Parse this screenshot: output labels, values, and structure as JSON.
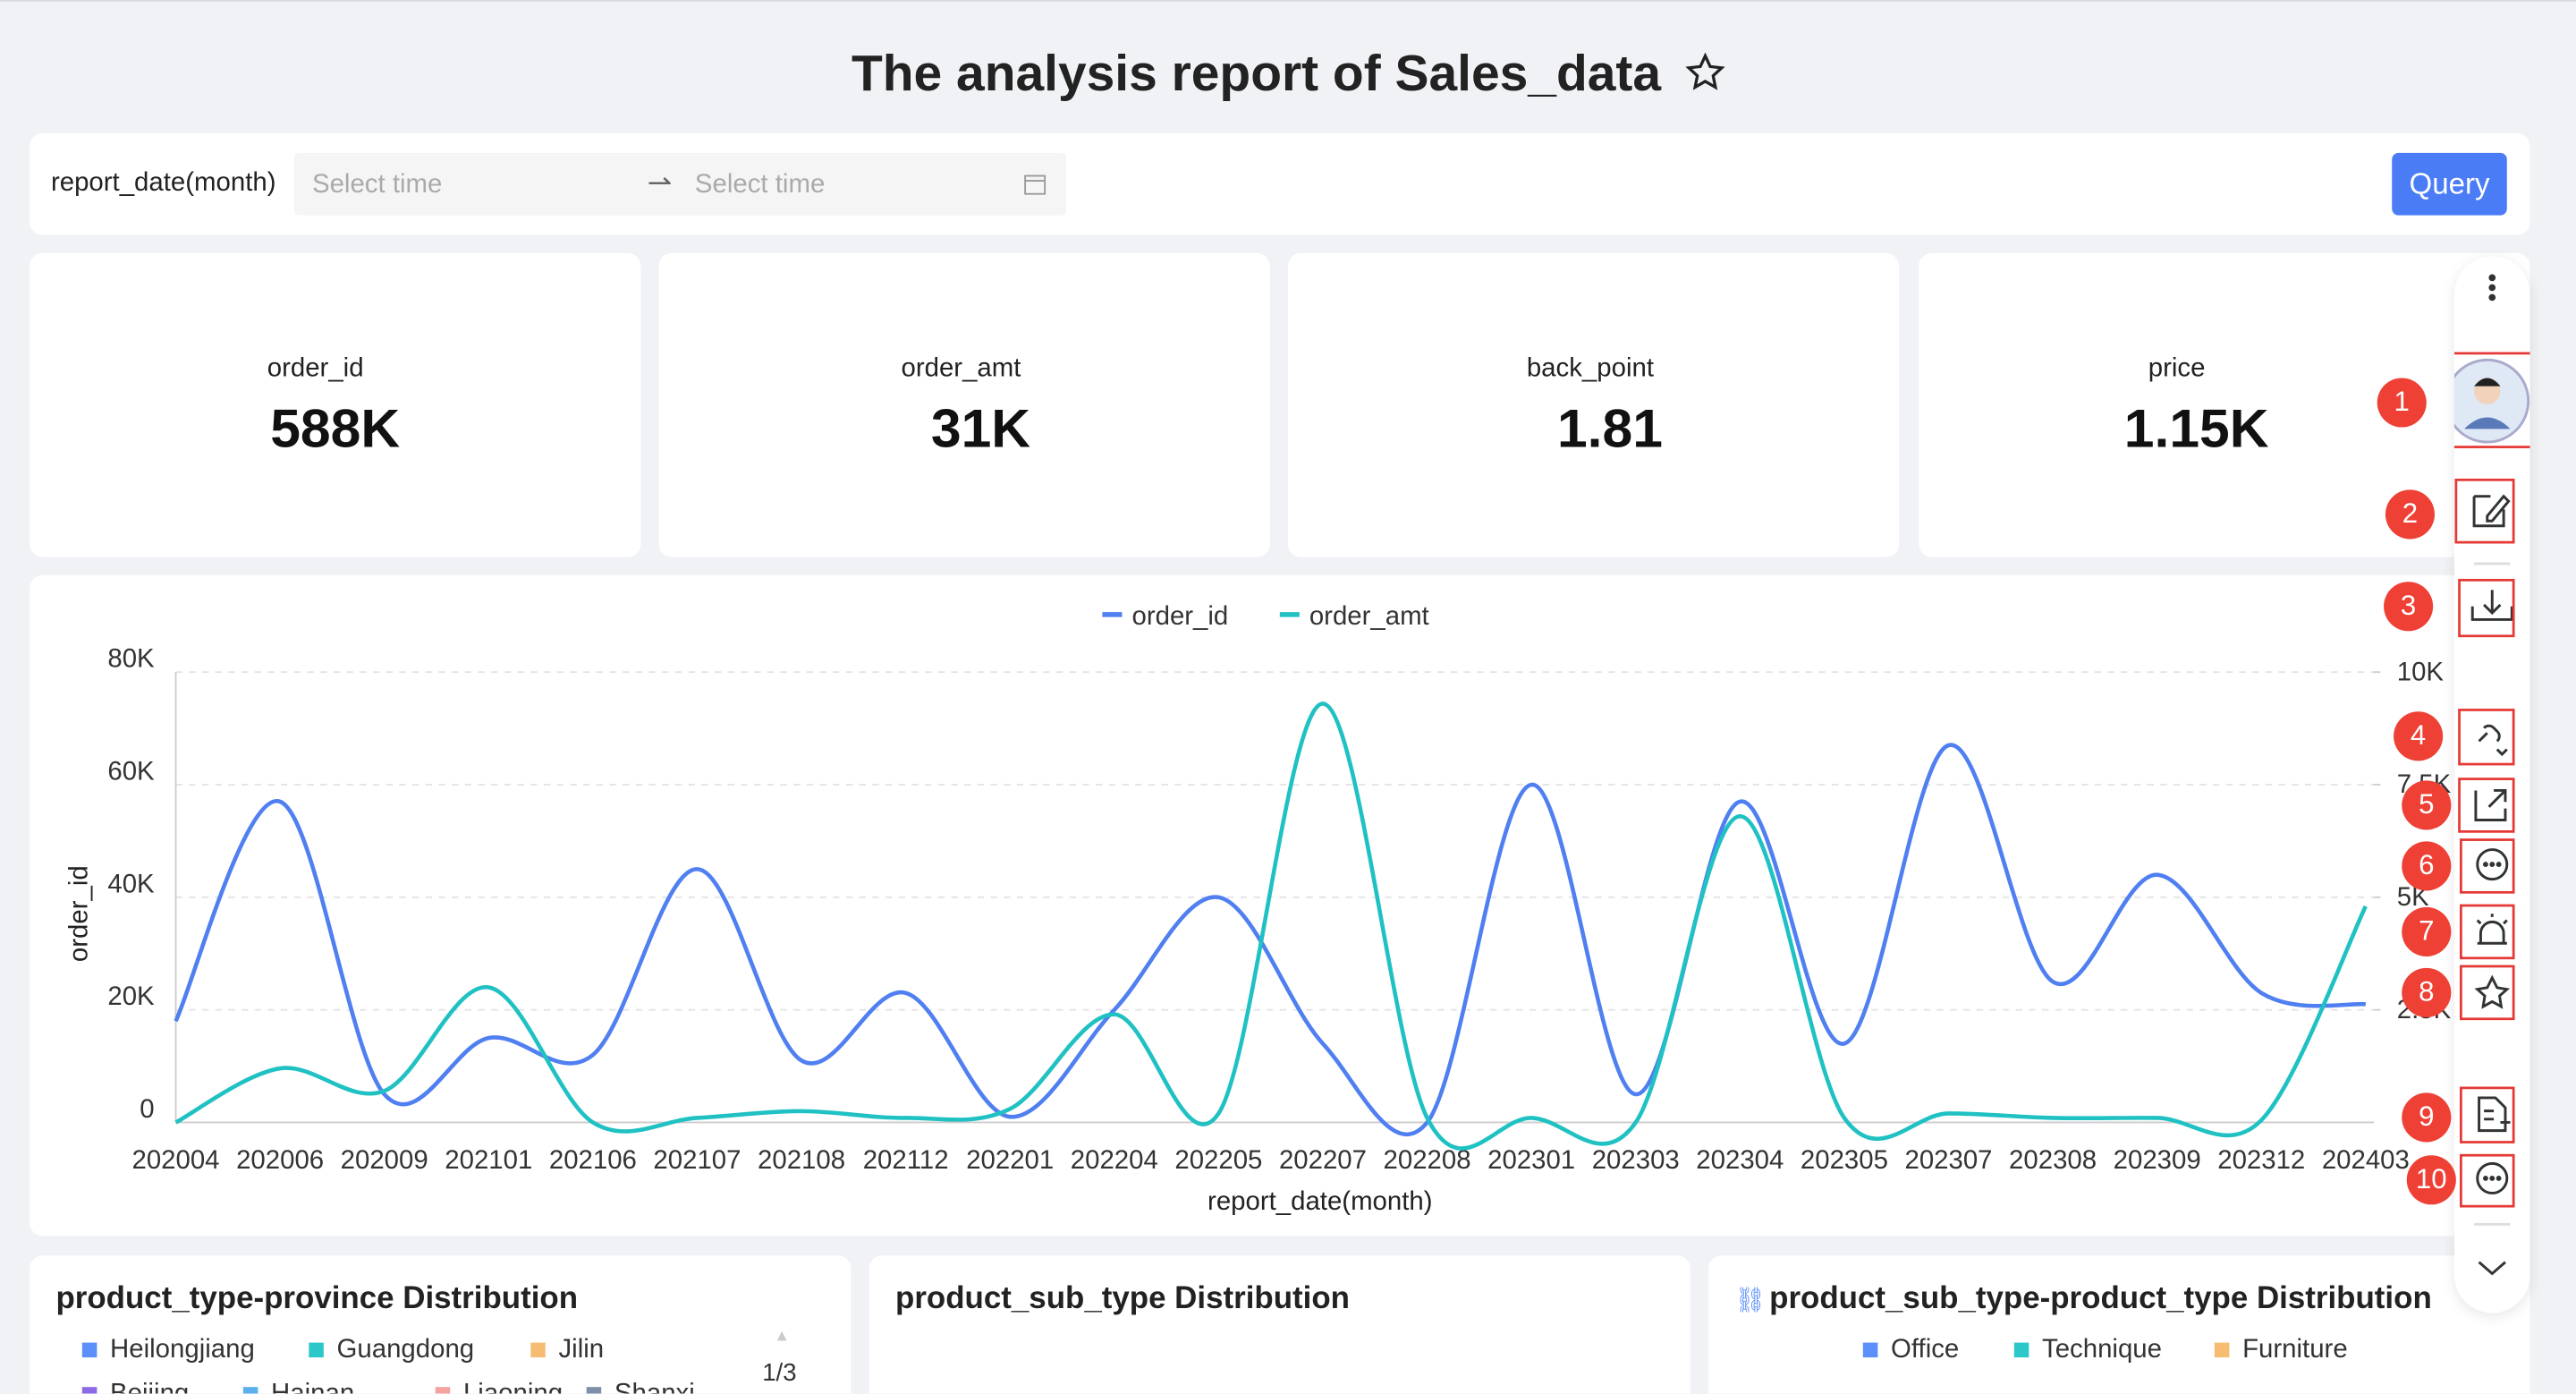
{
  "header": {
    "title": "The analysis report of Sales_data"
  },
  "filter": {
    "label": "report_date(month)",
    "start_placeholder": "Select time",
    "end_placeholder": "Select time",
    "button": "Query"
  },
  "kpis": [
    {
      "label": "order_id",
      "value": "588K"
    },
    {
      "label": "order_amt",
      "value": "31K"
    },
    {
      "label": "back_point",
      "value": "1.81"
    },
    {
      "label": "price",
      "value": "1.15K"
    }
  ],
  "chart": {
    "type": "line",
    "x_label": "report_date(month)",
    "y_label": "order_id",
    "categories": [
      "202004",
      "202006",
      "202009",
      "202101",
      "202106",
      "202107",
      "202108",
      "202112",
      "202201",
      "202204",
      "202205",
      "202207",
      "202208",
      "202301",
      "202303",
      "202304",
      "202305",
      "202307",
      "202308",
      "202309",
      "202312",
      "202403"
    ],
    "series": [
      {
        "name": "order_id",
        "color": "#4f7ff0",
        "values": [
          18000,
          57000,
          5000,
          15000,
          12000,
          45000,
          11000,
          23000,
          1000,
          20000,
          40000,
          14000,
          0,
          60000,
          5000,
          57000,
          14000,
          67000,
          25000,
          44000,
          23000,
          21000
        ]
      },
      {
        "name": "order_amt",
        "color": "#20c1c3",
        "axis": "y2",
        "values": [
          0,
          1200,
          700,
          3000,
          0,
          100,
          250,
          100,
          300,
          2400,
          200,
          9300,
          100,
          100,
          0,
          6800,
          100,
          200,
          100,
          100,
          50,
          4800
        ]
      }
    ],
    "ylim": [
      0,
      80000
    ],
    "yticks": [
      0,
      {
        "value": 20000,
        "label": "20K"
      },
      {
        "value": 40000,
        "label": "40K"
      },
      {
        "value": 60000,
        "label": "60K"
      },
      {
        "value": 80000,
        "label": "80K"
      }
    ],
    "y2lim": [
      0,
      10000
    ],
    "y2ticks": [
      {
        "value": 2500,
        "label": "2.5K"
      },
      {
        "value": 5000,
        "label": "5K"
      },
      {
        "value": 7500,
        "label": "7.5K"
      },
      {
        "value": 10000,
        "label": "10K"
      }
    ],
    "grid": true,
    "legend": "top"
  },
  "panels": [
    {
      "title": "product_type-province Distribution",
      "legend": [
        "Heilongjiang",
        "Guangdong",
        "Jilin",
        "Beijing",
        "Hainan",
        "Liaoning",
        "Shanxi"
      ],
      "pager": "1/3"
    },
    {
      "title": "product_sub_type Distribution"
    },
    {
      "title": "product_sub_type-product_type Distribution",
      "legend": [
        "Office",
        "Technique",
        "Furniture"
      ]
    }
  ],
  "toolbar_badges": [
    "1",
    "2",
    "3",
    "4",
    "5",
    "6",
    "7",
    "8",
    "9",
    "10"
  ]
}
